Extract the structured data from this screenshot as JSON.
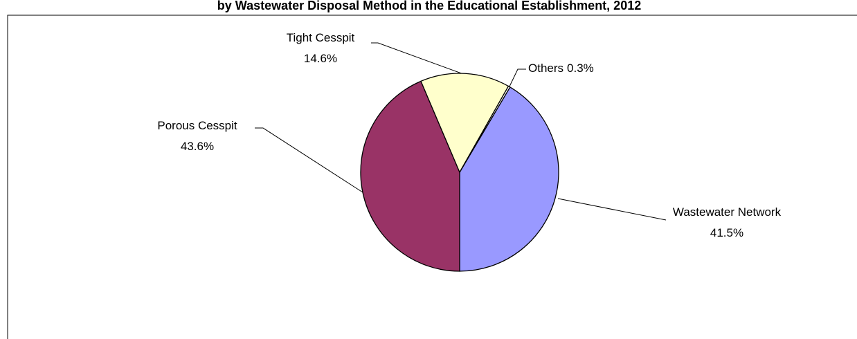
{
  "chart_data": {
    "type": "pie",
    "title": "by Wastewater Disposal Method in the Educational Establishment, 2012",
    "categories": [
      "Wastewater Network",
      "Porous Cesspit",
      "Tight Cesspit",
      "Others"
    ],
    "values": [
      41.5,
      43.6,
      14.6,
      0.3
    ],
    "value_labels": [
      "41.5%",
      "43.6%",
      "14.6%",
      "0.3%"
    ],
    "colors": [
      "#9999ff",
      "#993366",
      "#ffffcc",
      "#ffffff"
    ]
  }
}
